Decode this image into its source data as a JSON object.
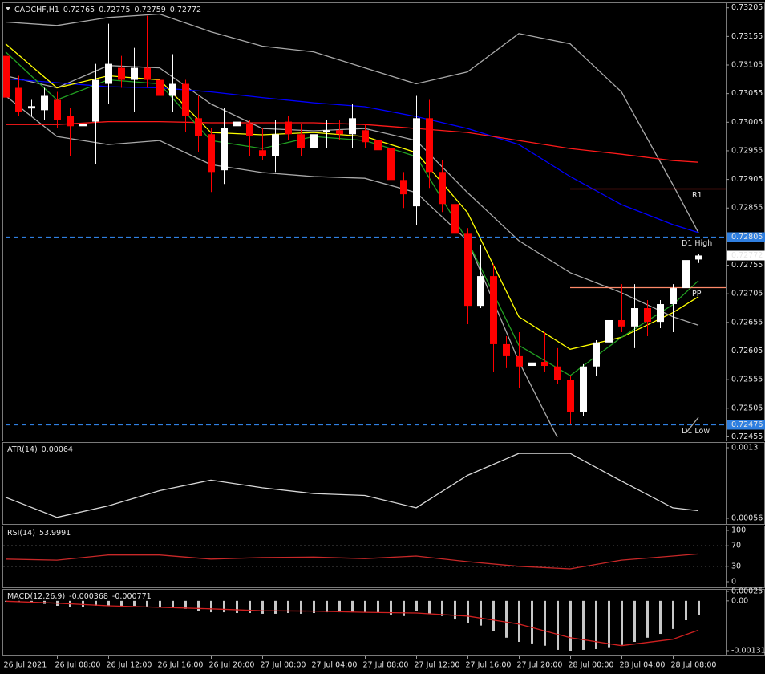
{
  "chart_data": [
    {
      "type": "candlestick",
      "title": "CADCHF,H1",
      "ylim": [
        0.7245,
        0.73213
      ],
      "yticks": [
        0.72455,
        0.72505,
        0.72555,
        0.72605,
        0.72655,
        0.72705,
        0.72755,
        0.72855,
        0.72905,
        0.72955,
        0.73005,
        0.73055,
        0.73105,
        0.73155,
        0.73205
      ],
      "xticks": [
        {
          "value": 0,
          "label": "26 Jul 2021"
        },
        {
          "value": 4,
          "label": "26 Jul 08:00"
        },
        {
          "value": 8,
          "label": "26 Jul 12:00"
        },
        {
          "value": 12,
          "label": "26 Jul 16:00"
        },
        {
          "value": 16,
          "label": "26 Jul 20:00"
        },
        {
          "value": 20,
          "label": "27 Jul 00:00"
        },
        {
          "value": 24,
          "label": "27 Jul 04:00"
        },
        {
          "value": 28,
          "label": "27 Jul 08:00"
        },
        {
          "value": 32,
          "label": "27 Jul 12:00"
        },
        {
          "value": 36,
          "label": "27 Jul 16:00"
        },
        {
          "value": 40,
          "label": "27 Jul 20:00"
        },
        {
          "value": 44,
          "label": "28 Jul 00:00"
        },
        {
          "value": 48,
          "label": "28 Jul 04:00"
        },
        {
          "value": 52,
          "label": "28 Jul 08:00"
        }
      ],
      "bull_color": "#ffffff",
      "bear_color": "#ff0000",
      "open": [
        0.73121,
        0.73065,
        0.73029,
        0.73026,
        0.73044,
        0.73016,
        0.72998,
        0.73006,
        0.73072,
        0.731,
        0.73079,
        0.731,
        0.73079,
        0.73051,
        0.73072,
        0.73012,
        0.72984,
        0.72921,
        0.72998,
        0.73002,
        0.72956,
        0.72946,
        0.73006,
        0.72984,
        0.7296,
        0.72988,
        0.72991,
        0.72984,
        0.72991,
        0.72974,
        0.7296,
        0.72904,
        0.72858,
        0.73012,
        0.72918,
        0.72862,
        0.7281,
        0.72684,
        0.72736,
        0.72617,
        0.72596,
        0.72579,
        0.72586,
        0.72578,
        0.72554,
        0.72498,
        0.72578,
        0.7262,
        0.72659,
        0.72648,
        0.7268,
        0.72656,
        0.72687,
        0.72715,
        0.72765
      ],
      "high": [
        0.73142,
        0.73086,
        0.73044,
        0.73065,
        0.73058,
        0.7303,
        0.73086,
        0.73107,
        0.73177,
        0.73121,
        0.73135,
        0.73191,
        0.73114,
        0.73124,
        0.73079,
        0.73051,
        0.72995,
        0.7303,
        0.73023,
        0.73009,
        0.72995,
        0.73009,
        0.73016,
        0.73002,
        0.73009,
        0.73009,
        0.73009,
        0.73037,
        0.73002,
        0.72981,
        0.72981,
        0.72918,
        0.73051,
        0.73044,
        0.72939,
        0.72869,
        0.7282,
        0.72791,
        0.72757,
        0.72631,
        0.72638,
        0.72603,
        0.72638,
        0.7261,
        0.72561,
        0.72582,
        0.72624,
        0.72701,
        0.72722,
        0.72722,
        0.72694,
        0.72694,
        0.72722,
        0.72806,
        0.72775
      ],
      "low": [
        0.73044,
        0.73016,
        0.73016,
        0.73009,
        0.72995,
        0.72946,
        0.72918,
        0.72932,
        0.73037,
        0.73065,
        0.73023,
        0.73065,
        0.72988,
        0.73023,
        0.72988,
        0.72953,
        0.72883,
        0.72897,
        0.72974,
        0.72946,
        0.72939,
        0.72918,
        0.72974,
        0.72946,
        0.72946,
        0.7296,
        0.72974,
        0.7296,
        0.7296,
        0.72911,
        0.72798,
        0.72855,
        0.72825,
        0.7289,
        0.72848,
        0.72743,
        0.72652,
        0.7268,
        0.72568,
        0.72575,
        0.7254,
        0.72561,
        0.72568,
        0.72547,
        0.72477,
        0.72491,
        0.72561,
        0.7261,
        0.72638,
        0.7261,
        0.72631,
        0.72645,
        0.72638,
        0.72708,
        0.72759
      ],
      "close": [
        0.73048,
        0.73023,
        0.73033,
        0.73051,
        0.73009,
        0.72998,
        0.73002,
        0.73079,
        0.73107,
        0.73079,
        0.731,
        0.73079,
        0.73051,
        0.73072,
        0.73016,
        0.72981,
        0.72918,
        0.72995,
        0.73006,
        0.72981,
        0.72946,
        0.72984,
        0.72984,
        0.7296,
        0.72984,
        0.72991,
        0.72984,
        0.73012,
        0.7297,
        0.72956,
        0.72904,
        0.72879,
        0.73012,
        0.72918,
        0.72862,
        0.7281,
        0.72684,
        0.72736,
        0.72617,
        0.72596,
        0.72578,
        0.72585,
        0.72579,
        0.72554,
        0.72498,
        0.72578,
        0.7262,
        0.72659,
        0.72648,
        0.7268,
        0.72656,
        0.72687,
        0.72715,
        0.72764,
        0.72772
      ],
      "series": [
        {
          "color": "#a9a9a9",
          "x": [
            0,
            4,
            8,
            12,
            16,
            20,
            24,
            28,
            32,
            36,
            40,
            44,
            48,
            52,
            54
          ],
          "values": [
            0.7318,
            0.73174,
            0.73188,
            0.73194,
            0.73163,
            0.73138,
            0.73128,
            0.731,
            0.73072,
            0.73093,
            0.7316,
            0.73142,
            0.73058,
            0.72896,
            0.72812
          ]
        },
        {
          "color": "#a9a9a9",
          "x": [
            0,
            4,
            8,
            12,
            16,
            20,
            24,
            28,
            32,
            36,
            40,
            44,
            48,
            52,
            54
          ],
          "values": [
            0.73086,
            0.73065,
            0.73104,
            0.731,
            0.73037,
            0.72994,
            0.7299,
            0.72994,
            0.72973,
            0.72882,
            0.72798,
            0.72742,
            0.72707,
            0.72665,
            0.7265
          ]
        },
        {
          "color": "#a9a9a9",
          "x": [
            0,
            4,
            8,
            12,
            16,
            20,
            24,
            28,
            32,
            36,
            40,
            43,
            48,
            53,
            54
          ],
          "values": [
            0.73051,
            0.7298,
            0.72966,
            0.72973,
            0.72931,
            0.72917,
            0.7291,
            0.72907,
            0.72882,
            0.72798,
            0.72587,
            0.72454,
            null,
            0.72461,
            0.72489
          ]
        },
        {
          "color": "#0000ff",
          "x": [
            0,
            4,
            8,
            12,
            16,
            20,
            24,
            28,
            32,
            36,
            40,
            44,
            48,
            52,
            54
          ],
          "values": [
            0.73081,
            0.73074,
            0.73067,
            0.73065,
            0.73058,
            0.73048,
            0.73039,
            0.73032,
            0.73015,
            0.72994,
            0.72966,
            0.7291,
            0.72861,
            0.72826,
            0.72812
          ]
        },
        {
          "color": "#ff1a1a",
          "x": [
            0,
            4,
            8,
            12,
            16,
            20,
            24,
            28,
            32,
            36,
            40,
            44,
            48,
            52,
            54
          ],
          "values": [
            0.73001,
            0.73001,
            0.73006,
            0.73006,
            0.73004,
            0.73004,
            0.73004,
            0.73001,
            0.72994,
            0.72987,
            0.72973,
            0.72959,
            0.72949,
            0.72938,
            0.72935
          ]
        },
        {
          "color": "#ffff00",
          "x": [
            0,
            4,
            8,
            12,
            16,
            20,
            24,
            28,
            32,
            36,
            40,
            44,
            48,
            52,
            54
          ],
          "values": [
            0.73142,
            0.73065,
            0.73086,
            0.73079,
            0.72987,
            0.72983,
            0.72987,
            0.7298,
            0.72952,
            0.72847,
            0.72665,
            0.72608,
            0.72629,
            0.72672,
            0.727
          ]
        },
        {
          "color": "#22a022",
          "x": [
            0,
            4,
            8,
            12,
            16,
            20,
            24,
            28,
            32,
            36,
            40,
            44,
            48,
            52,
            54
          ],
          "values": [
            0.73128,
            0.73044,
            0.73079,
            0.73072,
            0.72973,
            0.72959,
            0.7298,
            0.72973,
            0.72945,
            0.72798,
            0.72615,
            0.72562,
            0.72629,
            0.72686,
            0.72728
          ]
        }
      ],
      "levels": [
        {
          "name": "R1",
          "value": 0.72889,
          "from": 44,
          "color": "#e8302a",
          "dashed": false,
          "axis_label": false
        },
        {
          "name": "PP",
          "value": 0.72716,
          "from": 44,
          "color": "#ff8a6a",
          "dashed": false,
          "axis_label": false
        },
        {
          "name": "D1 High",
          "value": 0.72805,
          "from": 0,
          "color": "#2f7fe0",
          "dashed": true,
          "axis_label": true
        },
        {
          "name": "D1 Low",
          "value": 0.72476,
          "from": 0,
          "color": "#2f7fe0",
          "dashed": true,
          "axis_label": true
        }
      ]
    },
    {
      "type": "line",
      "title": "ATR(14)",
      "ylim": [
        0.00056,
        0.0013
      ],
      "yticks": [
        0.00056,
        0.0013
      ],
      "series": [
        {
          "color": "#d8d8d8",
          "x": [
            0,
            4,
            8,
            12,
            16,
            20,
            24,
            28,
            32,
            36,
            40,
            44,
            48,
            52,
            54
          ],
          "values": [
            0.00078,
            0.00057,
            0.00069,
            0.00085,
            0.00096,
            0.00088,
            0.00082,
            0.0008,
            0.00067,
            0.00101,
            0.00124,
            0.00124,
            0.00095,
            0.00067,
            0.00064
          ]
        }
      ]
    },
    {
      "type": "line",
      "title": "RSI(14)",
      "ylim": [
        0,
        100
      ],
      "yticks": [
        100,
        70,
        30,
        0
      ],
      "series": [
        {
          "color": "#c82828",
          "x": [
            0,
            4,
            8,
            12,
            16,
            20,
            24,
            28,
            32,
            36,
            40,
            44,
            48,
            52,
            54
          ],
          "values": [
            44,
            42,
            52,
            52,
            44,
            47,
            48,
            45,
            50,
            39,
            30,
            25,
            42,
            50,
            53.9991
          ]
        }
      ]
    },
    {
      "type": "bar",
      "title": "MACD(12,26,9)",
      "ylim": [
        -0.001312,
        0.00025
      ],
      "yticks": [
        0.00025,
        {
          "value": 0,
          "label": "0.00"
        },
        -0.001312
      ],
      "color": "#c8c8c8",
      "values": [
        -2e-05,
        -2e-05,
        -6e-05,
        -8e-05,
        -0.00013,
        -0.00017,
        -0.00017,
        -0.00013,
        -0.00013,
        -0.00013,
        -0.00013,
        -0.00015,
        -0.00017,
        -0.00017,
        -0.00021,
        -0.00027,
        -0.0003,
        -0.0003,
        -0.00032,
        -0.00032,
        -0.00034,
        -0.00034,
        -0.00032,
        -0.00034,
        -0.00032,
        -0.0003,
        -0.0003,
        -0.0003,
        -0.0003,
        -0.0003,
        -0.00036,
        -0.0004,
        -0.00027,
        -0.00034,
        -0.0004,
        -0.00049,
        -0.00059,
        -0.00065,
        -0.0008,
        -0.00097,
        -0.00108,
        -0.00112,
        -0.00118,
        -0.00129,
        -0.001312,
        -0.00129,
        -0.00127,
        -0.00122,
        -0.00116,
        -0.00108,
        -0.00097,
        -0.00087,
        -0.00074,
        -0.00051,
        -0.000368
      ],
      "series": [
        {
          "color": "#d02020",
          "x": [
            0,
            4,
            8,
            12,
            16,
            20,
            24,
            28,
            32,
            36,
            40,
            44,
            48,
            52,
            54
          ],
          "values": [
            -1e-05,
            -6e-05,
            -0.00013,
            -0.00017,
            -0.00021,
            -0.00026,
            -0.00027,
            -0.0003,
            -0.00032,
            -0.0004,
            -0.00061,
            -0.00097,
            -0.00118,
            -0.00101,
            -0.000771
          ]
        }
      ]
    }
  ]
}
